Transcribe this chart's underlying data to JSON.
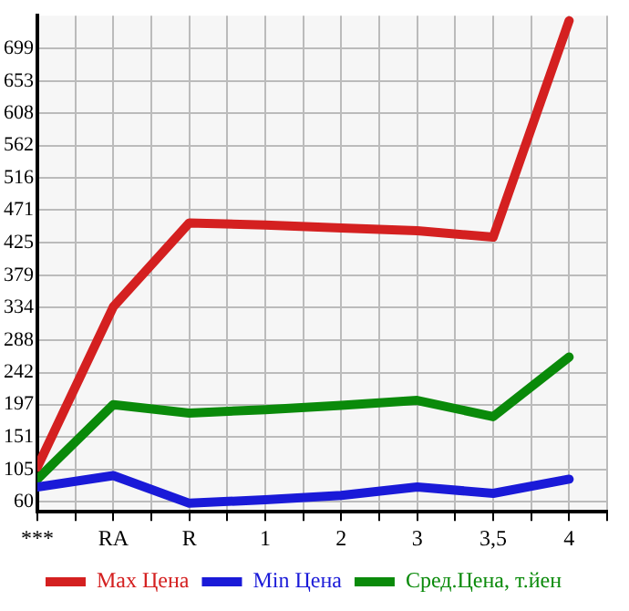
{
  "chart_data": {
    "type": "line",
    "categories": [
      "***",
      "RA",
      "R",
      "1",
      "2",
      "3",
      "3,5",
      "4"
    ],
    "series": [
      {
        "name": "Max Цена",
        "color": "#d42020",
        "values": [
          109,
          335,
          453,
          450,
          446,
          442,
          433,
          738
        ]
      },
      {
        "name": "Min Цена",
        "color": "#1a1ad8",
        "values": [
          81,
          97,
          58,
          63,
          69,
          81,
          72,
          92
        ]
      },
      {
        "name": "Сред.Цена, т.йен",
        "color": "#0a8a0a",
        "values": [
          92,
          197,
          185,
          190,
          196,
          203,
          180,
          264
        ]
      }
    ],
    "ylim": [
      46,
      745
    ],
    "yticks": [
      60,
      105,
      151,
      197,
      242,
      288,
      334,
      379,
      425,
      471,
      516,
      562,
      608,
      653,
      699
    ],
    "grid": true,
    "legend": "bottom",
    "marker": "none",
    "line_style": "solid"
  }
}
